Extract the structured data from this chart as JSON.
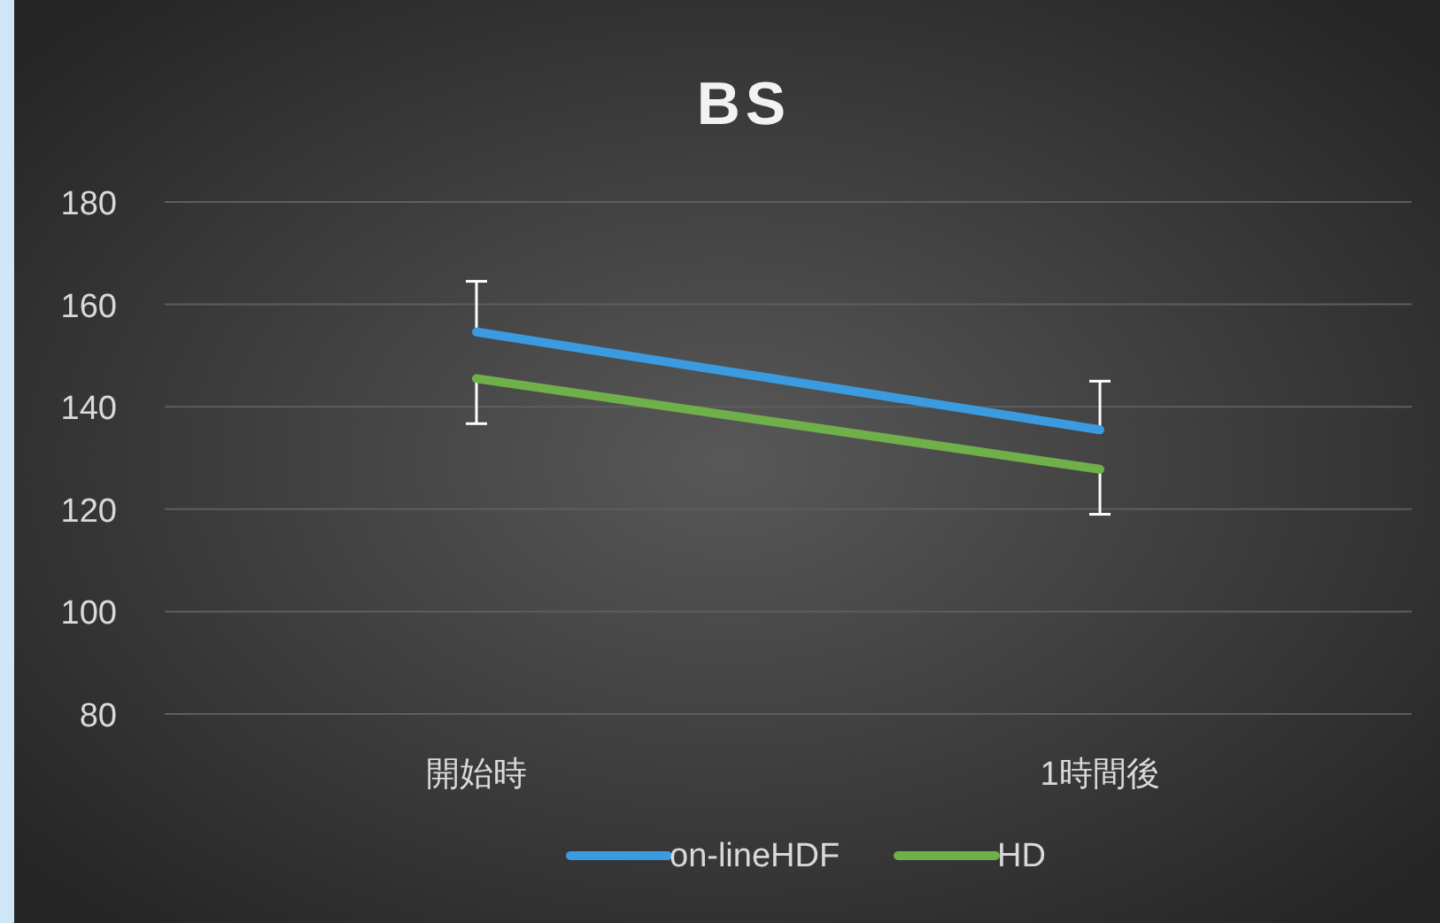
{
  "chart_data": {
    "type": "line",
    "title": "BS",
    "categories": [
      "開始時",
      "1時間後"
    ],
    "series": [
      {
        "name": "on-lineHDF",
        "color": "#3b9be0",
        "values": [
          154.6,
          135.5
        ],
        "errors": [
          [
            154.6,
            164.5
          ],
          [
            135.5,
            145
          ]
        ]
      },
      {
        "name": "HD",
        "color": "#70b04a",
        "values": [
          145.5,
          127.8
        ],
        "errors": [
          [
            136.7,
            145.5
          ],
          [
            119,
            127.8
          ]
        ]
      }
    ],
    "ylim": [
      80,
      180
    ],
    "yticks": [
      80,
      100,
      120,
      140,
      160,
      180
    ],
    "grid": "y",
    "legend": "bottom",
    "marker": "none",
    "line_style": "solid"
  }
}
